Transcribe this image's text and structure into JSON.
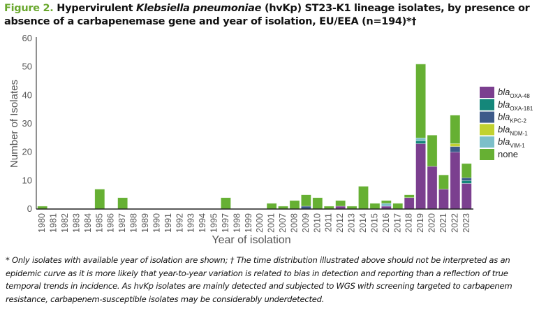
{
  "title": {
    "figure_label": "Figure 2.",
    "text_before_italic": " Hypervirulent ",
    "italic": "Klebsiella pneumoniae",
    "text_after_italic": " (hvKp) ST23-K1 lineage isolates, by presence or absence of a carbapenemase gene and year of isolation, EU/EEA (n=194)*†"
  },
  "footnote": "* Only isolates with available year of isolation are shown; † The time distribution illustrated above should not be interpreted as an epidemic curve as it is more likely that year-to-year variation is related to bias in detection and reporting than a reflection of true temporal trends in incidence. As hvKp isolates are mainly detected and subjected to WGS with screening targeted to carbapenem resistance, carbapenem-susceptible isolates may be considerably underdetected.",
  "chart_data": {
    "type": "bar",
    "stacked": true,
    "title": "Hypervirulent Klebsiella pneumoniae (hvKp) ST23-K1 lineage isolates, by presence or absence of a carbapenemase gene and year of isolation, EU/EEA (n=194)",
    "xlabel": "Year of isolation",
    "ylabel": "Number of Isolates",
    "ylim": [
      0,
      60
    ],
    "yticks": [
      0,
      10,
      20,
      30,
      40,
      50,
      60
    ],
    "grid": false,
    "legend_position": "right",
    "categories": [
      "1980",
      "1981",
      "1982",
      "1983",
      "1984",
      "1985",
      "1986",
      "1987",
      "1988",
      "1989",
      "1990",
      "1991",
      "1992",
      "1993",
      "1994",
      "1995",
      "1997",
      "1998",
      "1999",
      "2000",
      "2001",
      "2007",
      "2008",
      "2009",
      "2010",
      "2011",
      "2012",
      "2013",
      "2014",
      "2015",
      "2016",
      "2017",
      "2018",
      "2019",
      "2020",
      "2021",
      "2022",
      "2023"
    ],
    "series": [
      {
        "name": "blaOXA-48",
        "prefix": "bla",
        "sub": "OXA-48",
        "color": "#7b3f8f",
        "values": [
          0,
          0,
          0,
          0,
          0,
          0,
          0,
          0,
          0,
          0,
          0,
          0,
          0,
          0,
          0,
          0,
          0,
          0,
          0,
          0,
          0,
          0,
          0,
          0,
          0,
          0,
          1,
          0,
          0,
          0,
          1,
          0,
          4,
          23,
          15,
          7,
          20,
          9
        ]
      },
      {
        "name": "blaOXA-181",
        "prefix": "bla",
        "sub": "OXA-181",
        "color": "#14877a",
        "values": [
          0,
          0,
          0,
          0,
          0,
          0,
          0,
          0,
          0,
          0,
          0,
          0,
          0,
          0,
          0,
          0,
          0,
          0,
          0,
          0,
          0,
          0,
          0,
          0,
          0,
          0,
          0,
          0,
          0,
          0,
          0,
          0,
          0,
          1,
          0,
          0,
          0,
          1
        ]
      },
      {
        "name": "blaKPC-2",
        "prefix": "bla",
        "sub": "KPC-2",
        "color": "#3d5a8a",
        "values": [
          0,
          0,
          0,
          0,
          0,
          0,
          0,
          0,
          0,
          0,
          0,
          0,
          0,
          0,
          0,
          0,
          0,
          0,
          0,
          0,
          0,
          0,
          0,
          1,
          0,
          0,
          0,
          0,
          0,
          0,
          0,
          0,
          0,
          0,
          0,
          0,
          2,
          1
        ]
      },
      {
        "name": "blaNDM-1",
        "prefix": "bla",
        "sub": "NDM-1",
        "color": "#c2d230",
        "values": [
          0,
          0,
          0,
          0,
          0,
          0,
          0,
          0,
          0,
          0,
          0,
          0,
          0,
          0,
          0,
          0,
          0,
          0,
          0,
          0,
          0,
          0,
          0,
          0,
          0,
          0,
          0,
          0,
          0,
          0,
          0,
          0,
          0,
          0,
          0,
          0,
          1,
          0
        ]
      },
      {
        "name": "blaVIM-1",
        "prefix": "bla",
        "sub": "VIM-1",
        "color": "#7cbfc9",
        "values": [
          0,
          0,
          0,
          0,
          0,
          0,
          0,
          0,
          0,
          0,
          0,
          0,
          0,
          0,
          0,
          0,
          0,
          0,
          0,
          0,
          0,
          0,
          0,
          0,
          0,
          0,
          0,
          0,
          0,
          0,
          1,
          0,
          0,
          1,
          0,
          0,
          0,
          0
        ]
      },
      {
        "name": "none",
        "prefix": "none",
        "sub": "",
        "color": "#66b033",
        "values": [
          1,
          0,
          0,
          0,
          0,
          7,
          0,
          4,
          0,
          0,
          0,
          0,
          0,
          0,
          0,
          0,
          4,
          0,
          0,
          0,
          2,
          1,
          3,
          4,
          4,
          1,
          2,
          1,
          8,
          2,
          1,
          2,
          1,
          26,
          11,
          5,
          10,
          5
        ]
      }
    ]
  }
}
